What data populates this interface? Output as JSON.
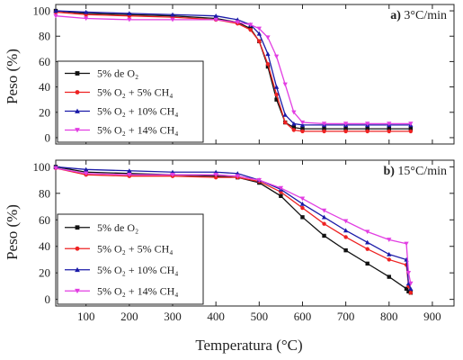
{
  "figure": {
    "ylabel": "Peso (%)",
    "xlabel": "Temperatura (°C)"
  },
  "chart_data": [
    {
      "type": "line",
      "panel_label": "a)",
      "title": "3°C/min",
      "ylabel": "Peso (%)",
      "xlabel": "",
      "xlim": [
        30,
        950
      ],
      "ylim": [
        -5,
        105
      ],
      "yticks": [
        0,
        20,
        40,
        60,
        80,
        100
      ],
      "xticks": [
        100,
        200,
        300,
        400,
        500,
        600,
        700,
        800,
        900
      ],
      "show_x_tick_labels": false,
      "legend_position": "bottom-left",
      "series": [
        {
          "name": "5% de O₂",
          "color": "#111111",
          "marker": "square",
          "x": [
            30,
            100,
            200,
            300,
            400,
            450,
            480,
            500,
            520,
            540,
            560,
            580,
            600,
            650,
            700,
            750,
            800,
            850
          ],
          "y": [
            100,
            98,
            97,
            96,
            94,
            91,
            86,
            76,
            56,
            30,
            12,
            8,
            7,
            7,
            7,
            7,
            7,
            7
          ]
        },
        {
          "name": "5% O₂ + 5% CH₄",
          "color": "#ee2222",
          "marker": "circle",
          "x": [
            30,
            100,
            200,
            300,
            400,
            450,
            480,
            500,
            520,
            540,
            560,
            580,
            600,
            650,
            700,
            750,
            800,
            850
          ],
          "y": [
            99,
            97,
            96,
            95,
            93,
            90,
            85,
            76,
            58,
            34,
            12,
            6,
            5,
            5,
            5,
            5,
            5,
            5
          ]
        },
        {
          "name": "5% O₂ + 10% CH₄",
          "color": "#1a1aa8",
          "marker": "triangle-up",
          "x": [
            30,
            100,
            200,
            300,
            400,
            450,
            480,
            500,
            520,
            540,
            560,
            580,
            600,
            650,
            700,
            750,
            800,
            850
          ],
          "y": [
            100,
            99,
            98,
            97,
            96,
            93,
            89,
            82,
            66,
            40,
            18,
            11,
            10,
            10,
            10,
            10,
            10,
            10
          ]
        },
        {
          "name": "5% O₂ + 14% CH₄",
          "color": "#e23ee2",
          "marker": "triangle-down",
          "x": [
            30,
            100,
            200,
            300,
            400,
            450,
            480,
            500,
            520,
            540,
            560,
            580,
            600,
            650,
            700,
            750,
            800,
            850
          ],
          "y": [
            96,
            94,
            93,
            93,
            93,
            91,
            89,
            86,
            79,
            64,
            42,
            20,
            12,
            11,
            11,
            11,
            11,
            11
          ]
        }
      ]
    },
    {
      "type": "line",
      "panel_label": "b)",
      "title": "15°C/min",
      "ylabel": "Peso (%)",
      "xlabel": "Temperatura (°C)",
      "xlim": [
        30,
        950
      ],
      "ylim": [
        -5,
        105
      ],
      "yticks": [
        0,
        20,
        40,
        60,
        80,
        100
      ],
      "xticks": [
        100,
        200,
        300,
        400,
        500,
        600,
        700,
        800,
        900
      ],
      "show_x_tick_labels": true,
      "legend_position": "bottom-left",
      "series": [
        {
          "name": "5% de O₂",
          "color": "#111111",
          "marker": "square",
          "x": [
            30,
            100,
            200,
            300,
            400,
            450,
            500,
            550,
            600,
            650,
            700,
            750,
            800,
            840,
            845,
            850
          ],
          "y": [
            100,
            96,
            95,
            94,
            93,
            92,
            88,
            78,
            62,
            48,
            37,
            27,
            17,
            8,
            6,
            5
          ]
        },
        {
          "name": "5% O₂ + 5% CH₄",
          "color": "#ee2222",
          "marker": "circle",
          "x": [
            30,
            100,
            200,
            300,
            400,
            450,
            500,
            550,
            600,
            650,
            700,
            750,
            800,
            840,
            845,
            850
          ],
          "y": [
            99,
            94,
            93,
            93,
            92,
            92,
            89,
            81,
            69,
            57,
            47,
            38,
            30,
            26,
            10,
            5
          ]
        },
        {
          "name": "5% O₂ + 10% CH₄",
          "color": "#1a1aa8",
          "marker": "triangle-up",
          "x": [
            30,
            100,
            200,
            300,
            400,
            450,
            500,
            550,
            600,
            650,
            700,
            750,
            800,
            840,
            845,
            850
          ],
          "y": [
            100,
            98,
            97,
            96,
            96,
            95,
            90,
            83,
            72,
            62,
            52,
            43,
            34,
            30,
            12,
            8
          ]
        },
        {
          "name": "5% O₂ + 14% CH₄",
          "color": "#e23ee2",
          "marker": "triangle-down",
          "x": [
            30,
            100,
            200,
            300,
            400,
            450,
            500,
            550,
            600,
            650,
            700,
            750,
            800,
            840,
            845,
            850
          ],
          "y": [
            99,
            95,
            94,
            94,
            94,
            93,
            90,
            84,
            76,
            67,
            59,
            51,
            45,
            42,
            20,
            12
          ]
        }
      ]
    }
  ]
}
